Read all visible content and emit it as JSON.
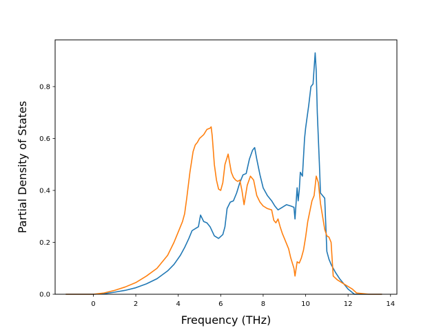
{
  "chart_data": {
    "type": "line",
    "title": "",
    "xlabel": "Frequency (THz)",
    "ylabel": "Partial Density of States",
    "xlim": [
      -1.8,
      14.3
    ],
    "ylim": [
      0.0,
      0.98
    ],
    "x_ticks": [
      0,
      2,
      4,
      6,
      8,
      10,
      12,
      14
    ],
    "x_tick_labels": [
      "0",
      "2",
      "4",
      "6",
      "8",
      "10",
      "12",
      "14"
    ],
    "y_ticks": [
      0.0,
      0.2,
      0.4,
      0.6,
      0.8
    ],
    "y_tick_labels": [
      "0.0",
      "0.2",
      "0.4",
      "0.6",
      "0.8"
    ],
    "grid": false,
    "legend": "none",
    "series": [
      {
        "color": "#1f77b4",
        "x": [
          -1.3,
          -0.5,
          0.0,
          0.5,
          1.0,
          1.5,
          2.0,
          2.5,
          3.0,
          3.5,
          3.8,
          4.1,
          4.3,
          4.5,
          4.65,
          4.85,
          4.95,
          5.05,
          5.2,
          5.35,
          5.5,
          5.7,
          5.9,
          6.1,
          6.2,
          6.3,
          6.45,
          6.6,
          6.75,
          6.9,
          7.05,
          7.2,
          7.35,
          7.5,
          7.6,
          7.7,
          7.85,
          8.0,
          8.2,
          8.4,
          8.55,
          8.7,
          8.9,
          9.1,
          9.3,
          9.45,
          9.5,
          9.6,
          9.65,
          9.7,
          9.75,
          9.85,
          9.95,
          10.0,
          10.05,
          10.15,
          10.25,
          10.35,
          10.45,
          10.5,
          10.55,
          10.6,
          10.65,
          10.7,
          10.8,
          10.9,
          11.0,
          11.1,
          11.2,
          11.4,
          11.6,
          11.8,
          12.0,
          12.15,
          12.3,
          12.5,
          13.0,
          13.6
        ],
        "values": [
          0.0,
          0.0,
          0.0,
          0.002,
          0.008,
          0.015,
          0.025,
          0.04,
          0.06,
          0.09,
          0.115,
          0.15,
          0.18,
          0.215,
          0.245,
          0.255,
          0.26,
          0.305,
          0.28,
          0.275,
          0.26,
          0.225,
          0.215,
          0.23,
          0.26,
          0.33,
          0.355,
          0.36,
          0.39,
          0.43,
          0.46,
          0.465,
          0.52,
          0.555,
          0.565,
          0.52,
          0.46,
          0.41,
          0.38,
          0.36,
          0.34,
          0.325,
          0.335,
          0.345,
          0.34,
          0.335,
          0.29,
          0.41,
          0.36,
          0.4,
          0.47,
          0.455,
          0.6,
          0.64,
          0.67,
          0.73,
          0.8,
          0.81,
          0.93,
          0.86,
          0.7,
          0.6,
          0.5,
          0.39,
          0.38,
          0.37,
          0.165,
          0.135,
          0.115,
          0.085,
          0.06,
          0.04,
          0.02,
          0.01,
          0.0,
          0.0,
          0.0,
          0.0
        ]
      },
      {
        "color": "#ff7f0e",
        "x": [
          -1.3,
          -0.5,
          0.0,
          0.5,
          1.0,
          1.5,
          2.0,
          2.5,
          3.0,
          3.5,
          3.8,
          4.0,
          4.2,
          4.3,
          4.4,
          4.55,
          4.7,
          4.8,
          4.9,
          5.0,
          5.2,
          5.35,
          5.5,
          5.55,
          5.6,
          5.7,
          5.8,
          5.9,
          6.0,
          6.1,
          6.2,
          6.35,
          6.5,
          6.6,
          6.7,
          6.8,
          6.9,
          7.0,
          7.1,
          7.25,
          7.4,
          7.55,
          7.7,
          7.85,
          8.0,
          8.2,
          8.4,
          8.5,
          8.6,
          8.7,
          8.8,
          8.9,
          9.0,
          9.2,
          9.3,
          9.45,
          9.5,
          9.6,
          9.7,
          9.8,
          9.9,
          10.0,
          10.1,
          10.2,
          10.3,
          10.4,
          10.5,
          10.6,
          10.7,
          10.8,
          10.9,
          11.0,
          11.1,
          11.2,
          11.3,
          11.5,
          11.8,
          12.0,
          12.2,
          12.4,
          13.0,
          13.6
        ],
        "values": [
          0.0,
          0.0,
          0.0,
          0.005,
          0.015,
          0.028,
          0.045,
          0.07,
          0.1,
          0.15,
          0.2,
          0.24,
          0.28,
          0.31,
          0.37,
          0.47,
          0.55,
          0.575,
          0.585,
          0.6,
          0.615,
          0.635,
          0.64,
          0.645,
          0.61,
          0.5,
          0.44,
          0.405,
          0.4,
          0.43,
          0.5,
          0.54,
          0.47,
          0.45,
          0.44,
          0.435,
          0.44,
          0.4,
          0.345,
          0.42,
          0.455,
          0.44,
          0.38,
          0.355,
          0.34,
          0.33,
          0.325,
          0.285,
          0.275,
          0.29,
          0.26,
          0.235,
          0.215,
          0.175,
          0.14,
          0.1,
          0.07,
          0.125,
          0.12,
          0.14,
          0.17,
          0.22,
          0.28,
          0.32,
          0.36,
          0.38,
          0.455,
          0.43,
          0.35,
          0.3,
          0.25,
          0.225,
          0.22,
          0.2,
          0.07,
          0.055,
          0.04,
          0.03,
          0.02,
          0.005,
          0.0,
          0.0
        ]
      }
    ]
  }
}
